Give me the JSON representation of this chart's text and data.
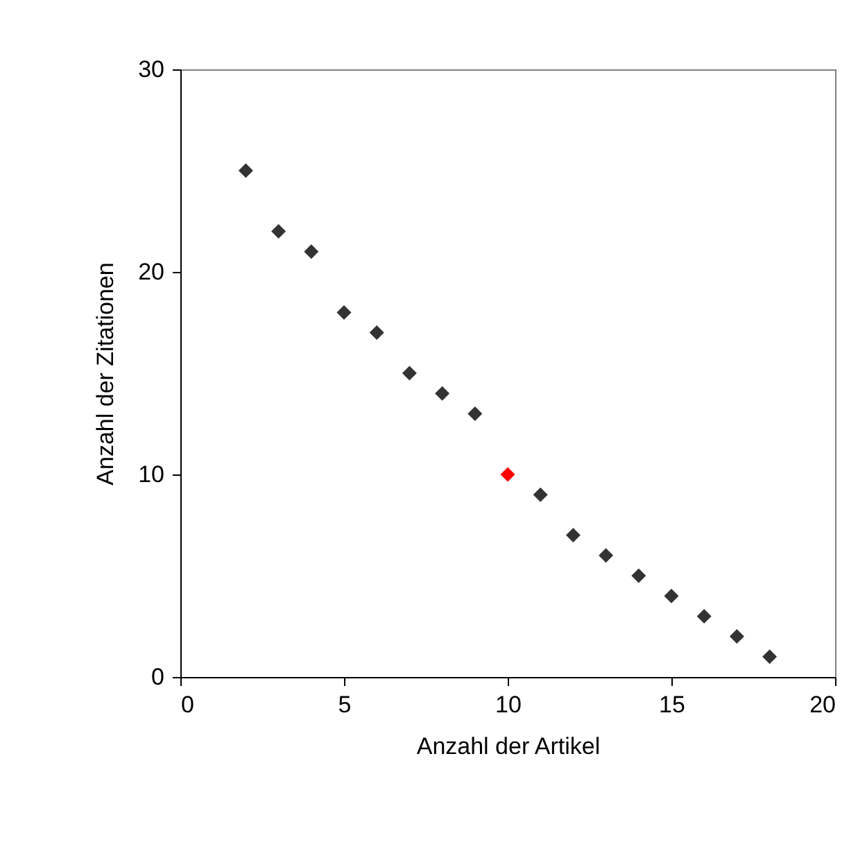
{
  "chart_data": {
    "type": "scatter",
    "xlabel": "Anzahl der Artikel",
    "ylabel": "Anzahl der Zitationen",
    "marker": "diamond",
    "grid": false,
    "legend": false,
    "xlim": [
      0,
      20
    ],
    "xticks": [
      0,
      5,
      10,
      15,
      20
    ],
    "ylim": [
      0,
      30
    ],
    "yticks": [
      0,
      10,
      20,
      30
    ],
    "series": [
      {
        "color": "#333333",
        "x": [
          2,
          3,
          4,
          5,
          6,
          7,
          8,
          9,
          11,
          12,
          13,
          14,
          15,
          16,
          17,
          18
        ],
        "values": [
          25,
          22,
          21,
          18,
          17,
          15,
          14,
          13,
          9,
          7,
          6,
          5,
          4,
          3,
          2,
          1
        ]
      },
      {
        "color": "#ff0000",
        "x": [
          10
        ],
        "values": [
          10
        ]
      }
    ]
  }
}
